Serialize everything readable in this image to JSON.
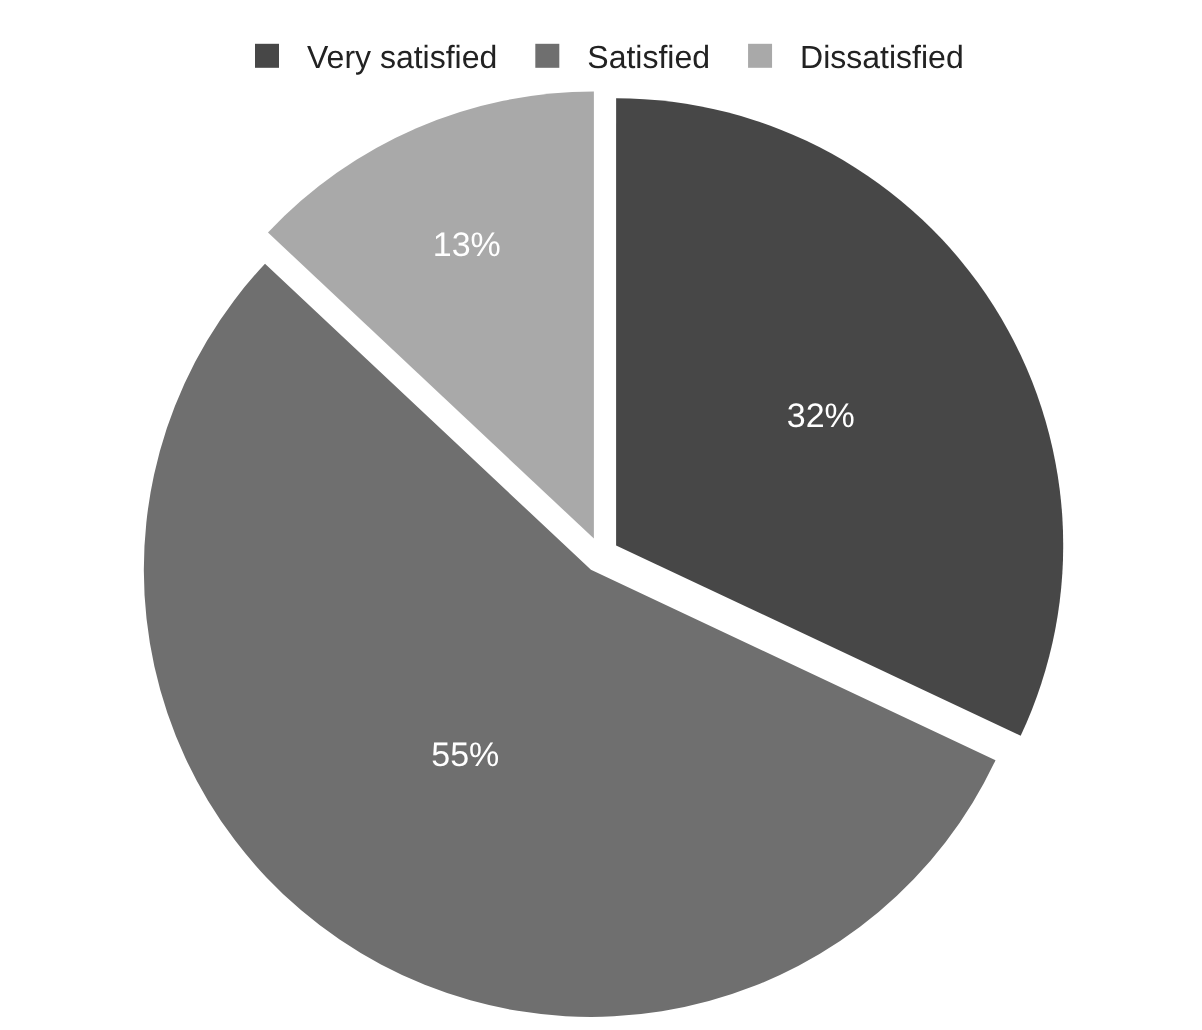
{
  "chart_data": {
    "type": "pie",
    "categories": [
      "Very satisfied",
      "Satisfied",
      "Dissatisfied"
    ],
    "values": [
      32,
      55,
      13
    ],
    "colors": [
      "#474747",
      "#6f6f6f",
      "#a9a9a9"
    ],
    "value_labels": [
      "32%",
      "55%",
      "13%"
    ],
    "legend": "top"
  }
}
